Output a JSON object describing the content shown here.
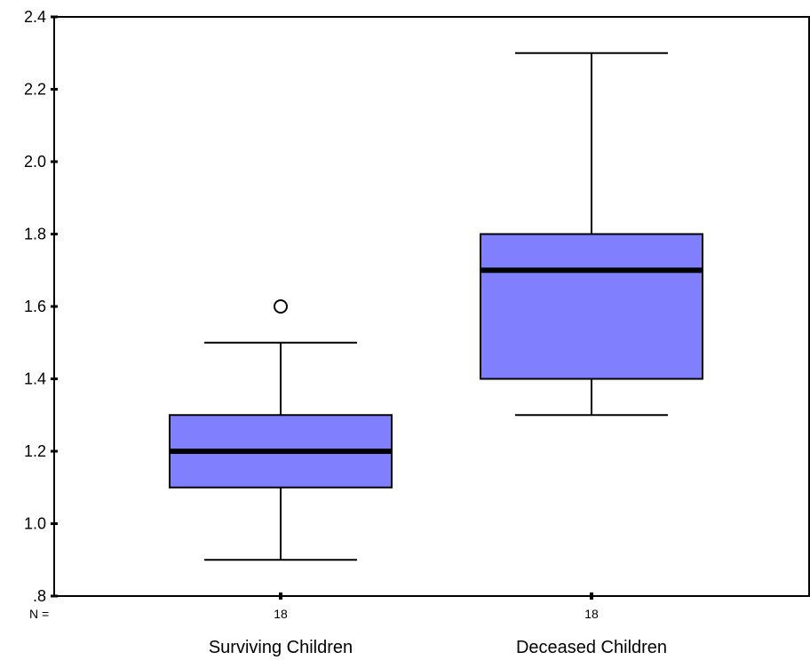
{
  "chart_data": {
    "type": "boxplot",
    "title": "",
    "xlabel": "",
    "ylabel": "",
    "ylim": [
      0.8,
      2.4
    ],
    "yticks": [
      0.8,
      1.0,
      1.2,
      1.4,
      1.6,
      1.8,
      2.0,
      2.2,
      2.4
    ],
    "ytick_labels": [
      ".8",
      "1.0",
      "1.2",
      "1.4",
      "1.6",
      "1.8",
      "2.0",
      "2.2",
      "2.4"
    ],
    "n_prefix": "N =",
    "categories": [
      "Surviving Children",
      "Deceased Children"
    ],
    "n": [
      "18",
      "18"
    ],
    "boxes": [
      {
        "whisker_low": 0.9,
        "q1": 1.1,
        "median": 1.2,
        "q3": 1.3,
        "whisker_high": 1.5,
        "outliers": [
          1.6
        ]
      },
      {
        "whisker_low": 1.3,
        "q1": 1.4,
        "median": 1.7,
        "q3": 1.8,
        "whisker_high": 2.3,
        "outliers": []
      }
    ],
    "box_fill": "#8080ff",
    "line_color": "#000000",
    "grid": false
  }
}
